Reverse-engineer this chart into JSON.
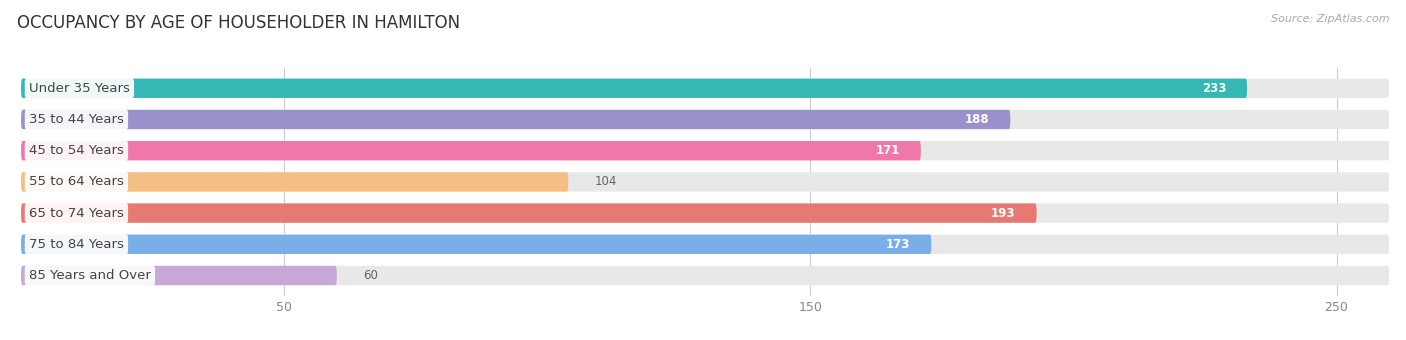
{
  "title": "OCCUPANCY BY AGE OF HOUSEHOLDER IN HAMILTON",
  "source": "Source: ZipAtlas.com",
  "categories": [
    "Under 35 Years",
    "35 to 44 Years",
    "45 to 54 Years",
    "55 to 64 Years",
    "65 to 74 Years",
    "75 to 84 Years",
    "85 Years and Over"
  ],
  "values": [
    233,
    188,
    171,
    104,
    193,
    173,
    60
  ],
  "bar_colors": [
    "#35b8b5",
    "#9b90cc",
    "#f078a8",
    "#f5be82",
    "#e87872",
    "#7aaee8",
    "#c8a8d8"
  ],
  "bar_bg_color": "#e8e8e8",
  "label_text_color": "#444444",
  "value_text_color_inside": "#ffffff",
  "value_text_color_outside": "#666666",
  "title_color": "#333333",
  "source_color": "#aaaaaa",
  "background_color": "#ffffff",
  "xlim_max": 260,
  "xticks": [
    50,
    150,
    250
  ],
  "title_fontsize": 12,
  "label_fontsize": 9.5,
  "value_fontsize": 8.5,
  "bar_height": 0.62,
  "outside_threshold": 130,
  "grid_color": "#cccccc",
  "tick_color": "#888888"
}
